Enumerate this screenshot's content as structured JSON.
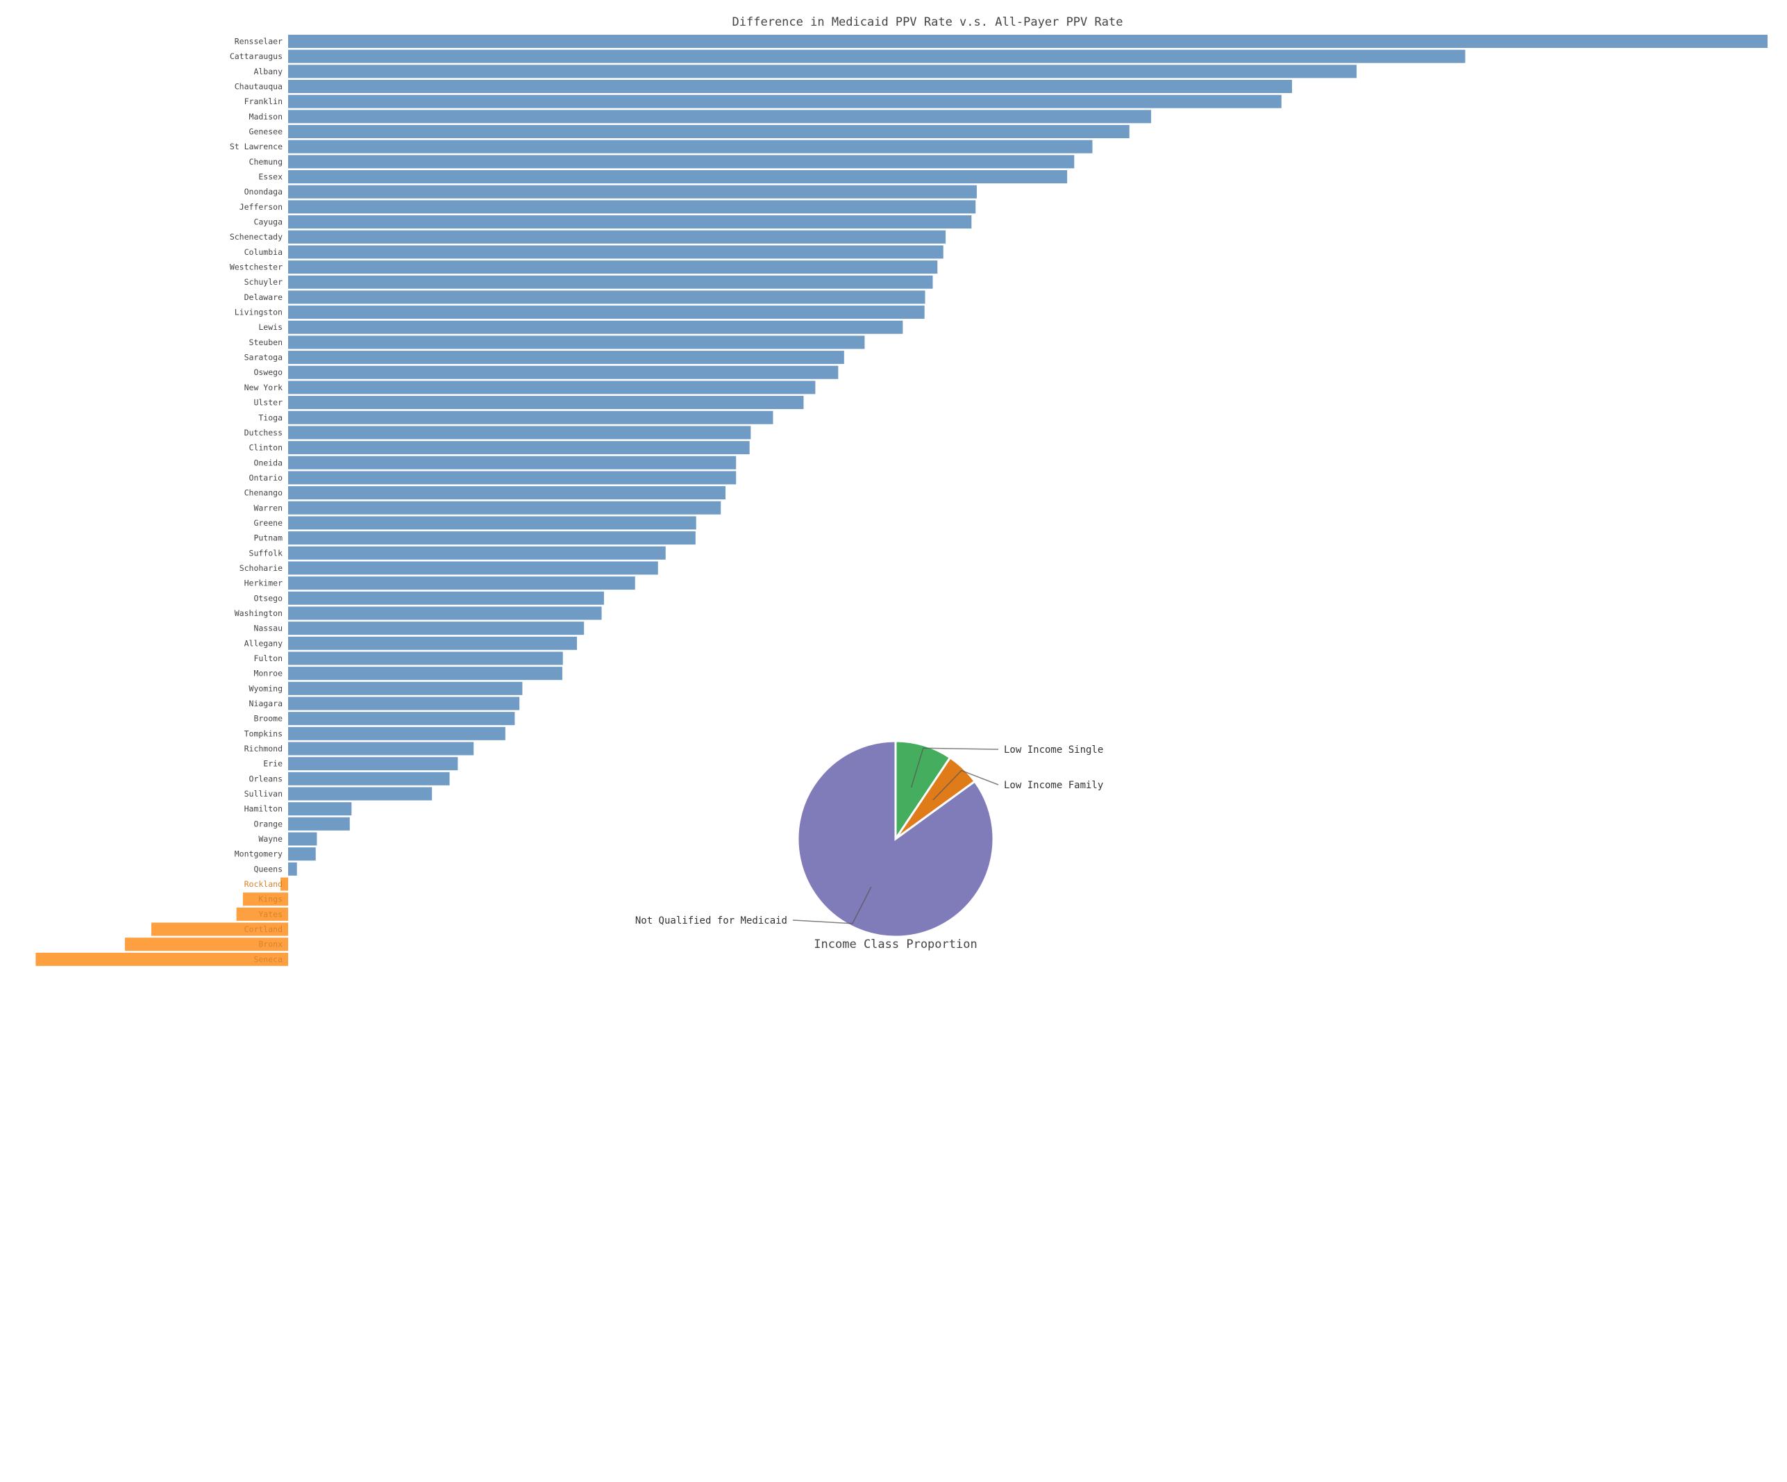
{
  "colors": {
    "positive_bar": "#6f9bc4",
    "negative_bar": "#ffa040",
    "negative_label": "#d9822b",
    "pie_low_income_single": "#44ad5e",
    "pie_low_income_family": "#e07b1a",
    "pie_not_qualified": "#807cba"
  },
  "chart_data": [
    {
      "type": "bar",
      "orientation": "horizontal",
      "title": "Difference in Medicaid PPV Rate v.s. All-Payer PPV Rate",
      "xlabel": "",
      "ylabel": "",
      "grid": false,
      "xlim": [
        -4.3,
        25.2
      ],
      "categories": [
        "Rensselaer",
        "Cattaraugus",
        "Albany",
        "Chautauqua",
        "Franklin",
        "Madison",
        "Genesee",
        "St Lawrence",
        "Chemung",
        "Essex",
        "Onondaga",
        "Jefferson",
        "Cayuga",
        "Schenectady",
        "Columbia",
        "Westchester",
        "Schuyler",
        "Delaware",
        "Livingston",
        "Lewis",
        "Steuben",
        "Saratoga",
        "Oswego",
        "New York",
        "Ulster",
        "Tioga",
        "Dutchess",
        "Clinton",
        "Oneida",
        "Ontario",
        "Chenango",
        "Warren",
        "Greene",
        "Putnam",
        "Suffolk",
        "Schoharie",
        "Herkimer",
        "Otsego",
        "Washington",
        "Nassau",
        "Allegany",
        "Fulton",
        "Monroe",
        "Wyoming",
        "Niagara",
        "Broome",
        "Tompkins",
        "Richmond",
        "Erie",
        "Orleans",
        "Sullivan",
        "Hamilton",
        "Orange",
        "Wayne",
        "Montgomery",
        "Queens",
        "Rockland",
        "Kings",
        "Yates",
        "Cortland",
        "Bronx",
        "Seneca"
      ],
      "values": [
        25.2,
        20.05,
        18.2,
        17.1,
        16.92,
        14.7,
        14.33,
        13.7,
        13.39,
        13.27,
        11.73,
        11.71,
        11.64,
        11.2,
        11.16,
        11.06,
        10.98,
        10.85,
        10.84,
        10.47,
        9.82,
        9.47,
        9.37,
        8.98,
        8.78,
        8.26,
        7.88,
        7.86,
        7.63,
        7.63,
        7.45,
        7.37,
        6.95,
        6.94,
        6.43,
        6.3,
        5.91,
        5.38,
        5.34,
        5.04,
        4.92,
        4.68,
        4.67,
        3.99,
        3.94,
        3.86,
        3.7,
        3.16,
        2.89,
        2.75,
        2.45,
        1.08,
        1.05,
        0.49,
        0.47,
        0.15,
        -0.13,
        -0.77,
        -0.88,
        -2.33,
        -2.78,
        -4.3
      ]
    },
    {
      "type": "pie",
      "title": "Income Class Proportion",
      "categories": [
        "Low Income Single",
        "Low Income Family",
        "Not Qualified for Medicaid"
      ],
      "values": [
        9.4,
        5.6,
        85.0
      ]
    }
  ]
}
